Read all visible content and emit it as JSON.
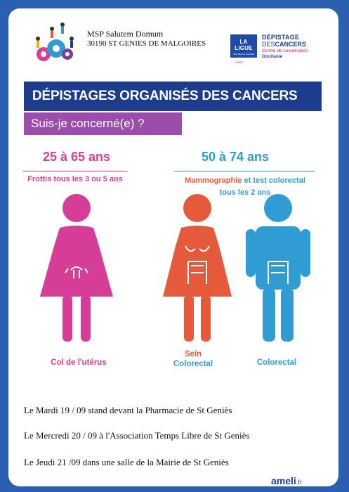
{
  "header": {
    "org_name": "MSP Salutem Domum",
    "org_address": "30190 ST GENIES DE MALGOIRES",
    "ligue_label": "LA LIGUE",
    "ligue_small": "CONTRE LE CANCER",
    "ligue_sub": "GARD",
    "depistage_line1": "DÉPISTAGE",
    "depistage_line2_a": "DES",
    "depistage_line2_b": "CANCERS",
    "depistage_line3": "Centre de coordination",
    "depistage_line4": "Occitanie"
  },
  "title": "DÉPISTAGES ORGANISÉS DES CANCERS",
  "subtitle": "Suis-je concerné(e) ?",
  "groups": {
    "women_25": {
      "age": "25 à 65 ans",
      "exam": "Frottis tous les 3 ou 5 ans",
      "label": "Col de l'utérus"
    },
    "people_50": {
      "age": "50 à 74 ans",
      "exam_a": "Mammographie",
      "exam_b": " et test colorectal",
      "exam_c": "tous les 2 ans",
      "woman_label_1": "Sein",
      "woman_label_2": "Colorectal",
      "man_label": "Colorectal"
    }
  },
  "events": [
    "Le Mardi 19 / 09 stand devant la Pharmacie de St Geniès",
    "Le Mercredi 20 / 09 à l'Association Temps Libre de St Geniès",
    "Le Jeudi 21 /09 dans une salle de la Mairie de St Geniès"
  ],
  "footer": {
    "brand": "ameli",
    "tld": ".fr"
  },
  "colors": {
    "pink": "#d63d96",
    "red": "#e55a3a",
    "blue": "#2f9cd4",
    "navy": "#1e3c8c",
    "purple": "#9c4dab"
  }
}
